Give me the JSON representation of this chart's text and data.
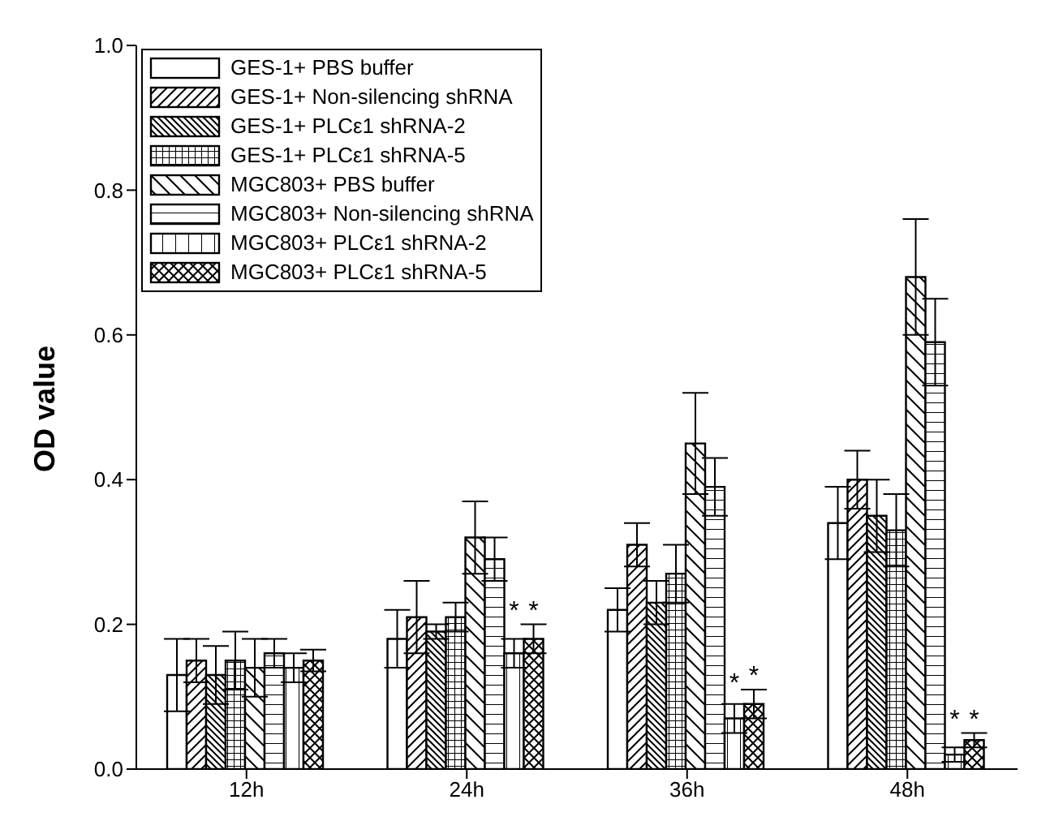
{
  "chart_data": {
    "type": "bar",
    "ylabel": "OD value",
    "categories": [
      "12h",
      "24h",
      "36h",
      "48h"
    ],
    "series": [
      {
        "name": "GES-1+ PBS buffer",
        "color": "#000000",
        "values": [
          0.13,
          0.18,
          0.22,
          0.34
        ],
        "errors": [
          0.05,
          0.04,
          0.03,
          0.05
        ]
      },
      {
        "name": "GES-1+ Non-silencing shRNA",
        "color": "#000000",
        "values": [
          0.15,
          0.21,
          0.31,
          0.4
        ],
        "errors": [
          0.03,
          0.05,
          0.03,
          0.04
        ]
      },
      {
        "name": "GES-1+ PLCε1 shRNA-2",
        "color": "#000000",
        "values": [
          0.13,
          0.19,
          0.23,
          0.35
        ],
        "errors": [
          0.04,
          0.01,
          0.03,
          0.05
        ]
      },
      {
        "name": "GES-1+ PLCε1 shRNA-5",
        "color": "#000000",
        "values": [
          0.15,
          0.21,
          0.27,
          0.33
        ],
        "errors": [
          0.04,
          0.02,
          0.04,
          0.05
        ]
      },
      {
        "name": "MGC803+ PBS buffer",
        "color": "#000000",
        "values": [
          0.14,
          0.32,
          0.45,
          0.68
        ],
        "errors": [
          0.04,
          0.05,
          0.07,
          0.08
        ]
      },
      {
        "name": "MGC803+ Non-silencing shRNA",
        "color": "#000000",
        "values": [
          0.16,
          0.29,
          0.39,
          0.59
        ],
        "errors": [
          0.02,
          0.03,
          0.04,
          0.06
        ]
      },
      {
        "name": "MGC803+ PLCε1 shRNA-2",
        "color": "#000000",
        "values": [
          0.14,
          0.16,
          0.07,
          0.02
        ],
        "errors": [
          0.02,
          0.02,
          0.02,
          0.01
        ]
      },
      {
        "name": "MGC803+ PLCε1 shRNA-5",
        "color": "#000000",
        "values": [
          0.15,
          0.18,
          0.09,
          0.04
        ],
        "errors": [
          0.015,
          0.02,
          0.02,
          0.01
        ]
      }
    ],
    "annotations": [
      {
        "text": "*",
        "x": "24h",
        "y": 0.23
      },
      {
        "text": "*",
        "x": "24h",
        "y": 0.23
      },
      {
        "text": "*",
        "x": "36h",
        "y": 0.13
      },
      {
        "text": "*",
        "x": "36h",
        "y": 0.14
      },
      {
        "text": "*",
        "x": "48h",
        "y": 0.08
      },
      {
        "text": "*",
        "x": "48h",
        "y": 0.08
      }
    ],
    "ylim": [
      0,
      1.0
    ],
    "yticks": [
      {
        "value": 0,
        "label": "0.0"
      },
      {
        "value": 0.2,
        "label": "0.2"
      },
      {
        "value": 0.4,
        "label": "0.4"
      },
      {
        "value": 0.6,
        "label": "0.6"
      },
      {
        "value": 0.8,
        "label": "0.8"
      },
      {
        "value": 1.0,
        "label": "1.0"
      }
    ],
    "legend": "top left",
    "grid": false
  }
}
